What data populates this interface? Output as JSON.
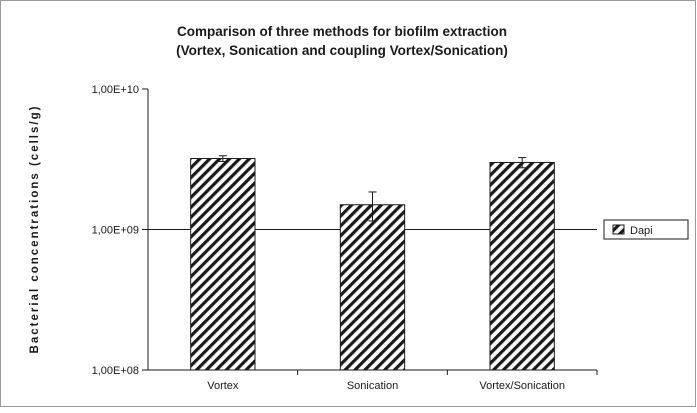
{
  "chart_data": {
    "type": "bar",
    "title": "Comparison of three methods for biofilm extraction",
    "subtitle": "(Vortex, Sonication and coupling Vortex/Sonication)",
    "xlabel": "",
    "ylabel": "Bacterial concentrations (cells/g)",
    "yscale": "log",
    "ylim": [
      100000000,
      10000000000
    ],
    "yticks": [
      100000000,
      1000000000,
      10000000000
    ],
    "ytick_labels": [
      "1,00E+08",
      "1,00E+09",
      "1,00E+10"
    ],
    "categories": [
      "Vortex",
      "Sonication",
      "Vortex/Sonication"
    ],
    "series": [
      {
        "name": "Dapi",
        "values": [
          3200000000,
          1500000000,
          3000000000
        ],
        "error_low": [
          3050000000,
          1150000000,
          2750000000
        ],
        "error_high": [
          3350000000,
          1850000000,
          3250000000
        ]
      }
    ],
    "grid": "major horizontal at 1,00E+09",
    "legend": "right",
    "pattern": "diagonal hatch"
  }
}
